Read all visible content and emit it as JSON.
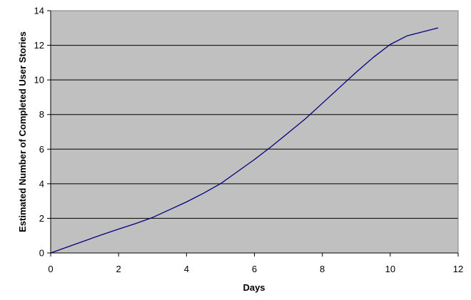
{
  "chart_data": {
    "type": "line",
    "title": "",
    "xlabel": "Days",
    "ylabel": "Estimated Number of Completed User Stories",
    "xlim": [
      0,
      12
    ],
    "ylim": [
      0,
      14
    ],
    "x_ticks": [
      0,
      2,
      4,
      6,
      8,
      10,
      12
    ],
    "y_ticks": [
      0,
      2,
      4,
      6,
      8,
      10,
      12,
      14
    ],
    "grid": "horizontal",
    "legend": "none",
    "colors": {
      "plot_background": "#c0c0c0",
      "line": "#000080",
      "gridline": "#000000"
    },
    "series": [
      {
        "x": [
          0,
          0.5,
          1,
          1.5,
          2,
          2.5,
          3,
          3.5,
          4,
          4.5,
          5,
          5.5,
          6,
          6.5,
          7,
          7.5,
          8,
          8.5,
          9,
          9.5,
          10,
          10.5,
          11,
          11.4
        ],
        "values": [
          0,
          0.35,
          0.7,
          1.05,
          1.38,
          1.7,
          2.05,
          2.5,
          2.95,
          3.45,
          4.0,
          4.7,
          5.4,
          6.15,
          6.95,
          7.75,
          8.65,
          9.55,
          10.45,
          11.3,
          12.05,
          12.55,
          12.8,
          13.0
        ]
      }
    ]
  }
}
